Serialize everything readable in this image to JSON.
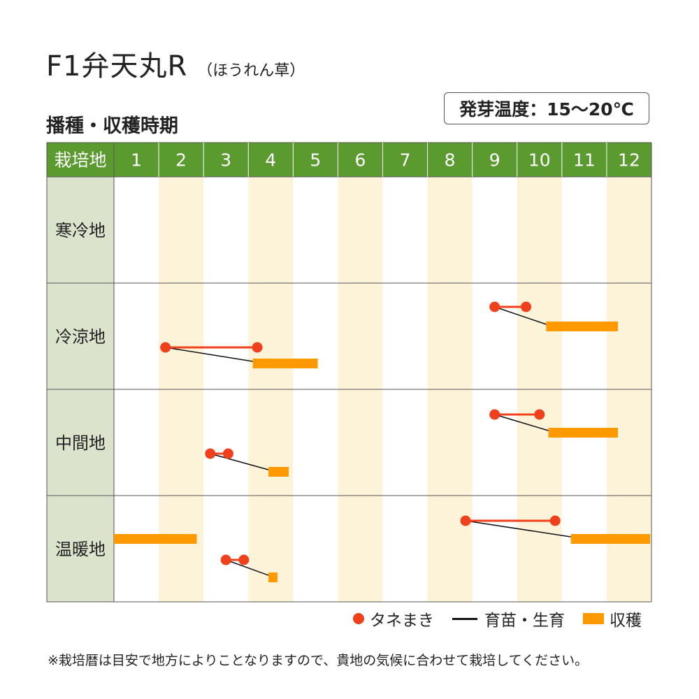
{
  "title": "F1弁天丸R",
  "subtitle": "（ほうれん草）",
  "section_title": "播種・収穫時期",
  "germination_temp": "発芽温度：15～20℃",
  "footnote": "※栽培暦は目安で地方によりことなりますので、貴地の気候に合わせて栽培してください。",
  "legend": {
    "sowing": "タネまき",
    "growing": "育苗・生育",
    "harvest": "収穫"
  },
  "colors": {
    "header_green": "#5a9a2f",
    "region_cell": "#dbe3cc",
    "stripe": "#fdf3d8",
    "sowing": "#f0401c",
    "harvest": "#ff9900",
    "growing": "#111111"
  },
  "chart_data": {
    "type": "gantt",
    "x_header_label": "栽培地",
    "months": [
      "1",
      "2",
      "3",
      "4",
      "5",
      "6",
      "7",
      "8",
      "9",
      "10",
      "11",
      "12"
    ],
    "regions": [
      {
        "name": "寒冷地",
        "entries": []
      },
      {
        "name": "冷涼地",
        "entries": [
          {
            "sow": [
              2.15,
              4.2
            ],
            "harvest": [
              4.1,
              5.55
            ]
          },
          {
            "sow": [
              9.5,
              10.2
            ],
            "harvest": [
              10.65,
              12.25
            ]
          }
        ]
      },
      {
        "name": "中間地",
        "entries": [
          {
            "sow": [
              3.15,
              3.55
            ],
            "harvest": [
              4.45,
              4.9
            ]
          },
          {
            "sow": [
              9.5,
              10.5
            ],
            "harvest": [
              10.7,
              12.25
            ]
          }
        ]
      },
      {
        "name": "温暖地",
        "entries": [
          {
            "sow": [
              8.85,
              10.85
            ],
            "harvest": [
              11.2,
              13.0
            ]
          },
          {
            "sow": [
              3.5,
              3.9
            ],
            "harvest": [
              4.45,
              4.65
            ]
          },
          {
            "sow": null,
            "harvest": [
              1.0,
              2.85
            ]
          }
        ]
      }
    ]
  }
}
